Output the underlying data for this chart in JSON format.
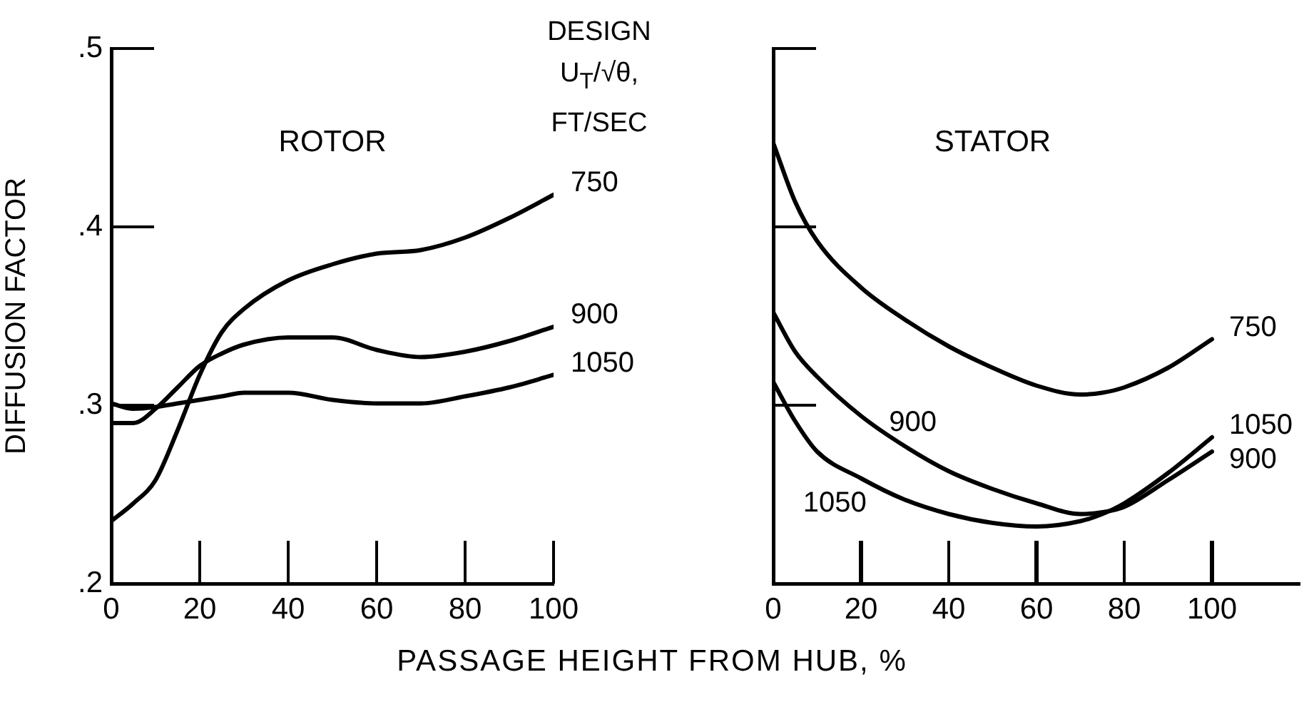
{
  "chart_data": [
    {
      "type": "line",
      "title": "ROTOR",
      "xlabel": "PASSAGE HEIGHT FROM HUB, %",
      "ylabel": "DIFFUSION FACTOR",
      "legend_title": "DESIGN U$_{T}$/√θ, FT/SEC",
      "x": [
        0,
        5,
        10,
        15,
        20,
        25,
        30,
        40,
        50,
        60,
        70,
        80,
        90,
        100
      ],
      "series": [
        {
          "name": "750",
          "color": "#000000",
          "values": [
            0.235,
            0.245,
            0.258,
            0.286,
            0.317,
            0.341,
            0.354,
            0.37,
            0.379,
            0.385,
            0.387,
            0.394,
            0.405,
            0.418
          ]
        },
        {
          "name": "900",
          "color": "#000000",
          "values": [
            0.29,
            0.29,
            0.298,
            0.31,
            0.322,
            0.329,
            0.334,
            0.338,
            0.338,
            0.331,
            0.327,
            0.33,
            0.336,
            0.344
          ]
        },
        {
          "name": "1050",
          "color": "#000000",
          "values": [
            0.301,
            0.298,
            0.299,
            0.301,
            0.303,
            0.305,
            0.307,
            0.307,
            0.303,
            0.301,
            0.301,
            0.305,
            0.31,
            0.317
          ]
        }
      ],
      "xlim": [
        0,
        100
      ],
      "xticks": [
        0,
        20,
        40,
        60,
        80,
        100
      ],
      "ylim": [
        0.2,
        0.5
      ],
      "yticks": [
        {
          "value": 0.2,
          "label": ".2"
        },
        {
          "value": 0.3,
          "label": ".3"
        },
        {
          "value": 0.4,
          "label": ".4"
        },
        {
          "value": 0.5,
          "label": ".5"
        }
      ],
      "legend": false,
      "marker": "none",
      "line_style": "solid"
    },
    {
      "type": "line",
      "title": "STATOR",
      "x": [
        0,
        5,
        10,
        20,
        30,
        40,
        50,
        60,
        70,
        75,
        80,
        90,
        100
      ],
      "series": [
        {
          "name": "750",
          "color": "#000000",
          "values": [
            0.447,
            0.414,
            0.392,
            0.366,
            0.348,
            0.333,
            0.321,
            0.311,
            0.306,
            0.307,
            0.31,
            0.321,
            0.337
          ]
        },
        {
          "name": "900",
          "color": "#000000",
          "values": [
            0.352,
            0.33,
            0.316,
            0.294,
            0.277,
            0.263,
            0.253,
            0.245,
            0.239,
            0.24,
            0.243,
            0.258,
            0.274
          ]
        },
        {
          "name": "1050",
          "color": "#000000",
          "values": [
            0.313,
            0.291,
            0.274,
            0.259,
            0.247,
            0.239,
            0.234,
            0.232,
            0.235,
            0.239,
            0.245,
            0.262,
            0.282
          ]
        }
      ],
      "annotations": [
        "900",
        "1050"
      ],
      "xlim": [
        0,
        120
      ],
      "xticks": [
        0,
        20,
        40,
        60,
        80,
        100
      ],
      "ylim": [
        0.2,
        0.5
      ],
      "yticks": [
        {
          "value": 0.2,
          "label": null
        },
        {
          "value": 0.3,
          "label": null
        },
        {
          "value": 0.4,
          "label": null
        },
        {
          "value": 0.5,
          "label": null
        }
      ],
      "tick_labels": "x",
      "legend": false,
      "marker": "none",
      "line_style": "solid"
    }
  ]
}
